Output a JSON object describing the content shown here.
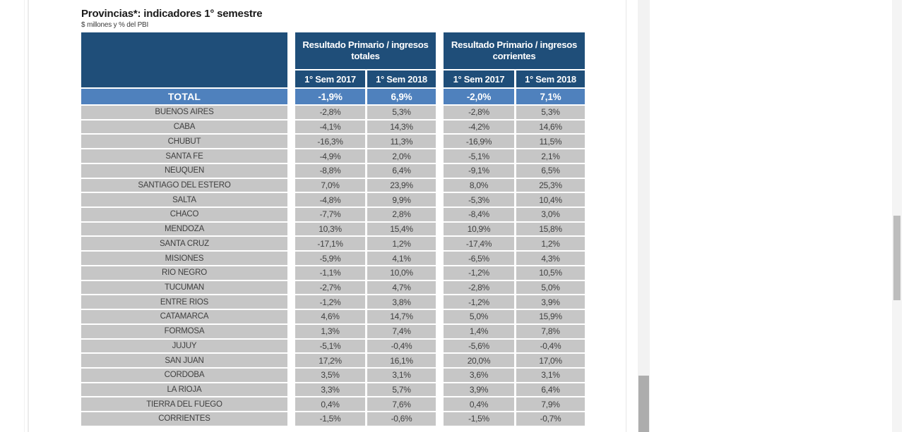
{
  "page": {
    "title": "Provincias*: indicadores 1° semestre",
    "subtitle": "$ millones y % del PBI"
  },
  "table": {
    "group_headers": [
      "Resultado Primario / ingresos totales",
      "Resultado Primario / ingresos corrientes"
    ],
    "sub_headers": [
      "1° Sem 2017",
      "1° Sem 2018",
      "1° Sem 2017",
      "1° Sem 2018"
    ],
    "total_row": {
      "label": "TOTAL",
      "values": [
        "-1,9%",
        "6,9%",
        "-2,0%",
        "7,1%"
      ]
    },
    "rows": [
      {
        "label": "BUENOS AIRES",
        "values": [
          "-2,8%",
          "5,3%",
          "-2,8%",
          "5,3%"
        ]
      },
      {
        "label": "CABA",
        "values": [
          "-4,1%",
          "14,3%",
          "-4,2%",
          "14,6%"
        ]
      },
      {
        "label": "CHUBUT",
        "values": [
          "-16,3%",
          "11,3%",
          "-16,9%",
          "11,5%"
        ]
      },
      {
        "label": "SANTA FE",
        "values": [
          "-4,9%",
          "2,0%",
          "-5,1%",
          "2,1%"
        ]
      },
      {
        "label": "NEUQUEN",
        "values": [
          "-8,8%",
          "6,4%",
          "-9,1%",
          "6,5%"
        ]
      },
      {
        "label": "SANTIAGO DEL ESTERO",
        "values": [
          "7,0%",
          "23,9%",
          "8,0%",
          "25,3%"
        ]
      },
      {
        "label": "SALTA",
        "values": [
          "-4,8%",
          "9,9%",
          "-5,3%",
          "10,4%"
        ]
      },
      {
        "label": "CHACO",
        "values": [
          "-7,7%",
          "2,8%",
          "-8,4%",
          "3,0%"
        ]
      },
      {
        "label": "MENDOZA",
        "values": [
          "10,3%",
          "15,4%",
          "10,9%",
          "15,8%"
        ]
      },
      {
        "label": "SANTA CRUZ",
        "values": [
          "-17,1%",
          "1,2%",
          "-17,4%",
          "1,2%"
        ]
      },
      {
        "label": "MISIONES",
        "values": [
          "-5,9%",
          "4,1%",
          "-6,5%",
          "4,3%"
        ]
      },
      {
        "label": "RIO NEGRO",
        "values": [
          "-1,1%",
          "10,0%",
          "-1,2%",
          "10,5%"
        ]
      },
      {
        "label": "TUCUMAN",
        "values": [
          "-2,7%",
          "4,7%",
          "-2,8%",
          "5,0%"
        ]
      },
      {
        "label": "ENTRE RIOS",
        "values": [
          "-1,2%",
          "3,8%",
          "-1,2%",
          "3,9%"
        ]
      },
      {
        "label": "CATAMARCA",
        "values": [
          "4,6%",
          "14,7%",
          "5,0%",
          "15,9%"
        ]
      },
      {
        "label": "FORMOSA",
        "values": [
          "1,3%",
          "7,4%",
          "1,4%",
          "7,8%"
        ]
      },
      {
        "label": "JUJUY",
        "values": [
          "-5,1%",
          "-0,4%",
          "-5,6%",
          "-0,4%"
        ]
      },
      {
        "label": "SAN JUAN",
        "values": [
          "17,2%",
          "16,1%",
          "20,0%",
          "17,0%"
        ]
      },
      {
        "label": "CORDOBA",
        "values": [
          "3,5%",
          "3,1%",
          "3,6%",
          "3,1%"
        ]
      },
      {
        "label": "LA RIOJA",
        "values": [
          "3,3%",
          "5,7%",
          "3,9%",
          "6,4%"
        ]
      },
      {
        "label": "TIERRA DEL FUEGO",
        "values": [
          "0,4%",
          "7,6%",
          "0,4%",
          "7,9%"
        ]
      },
      {
        "label": "CORRIENTES",
        "values": [
          "-1,5%",
          "-0,6%",
          "-1,5%",
          "-0,7%"
        ]
      }
    ]
  },
  "colors": {
    "header_navy": "#1F4E79",
    "total_blue": "#4F81BD",
    "row_gray": "#C6C6C6",
    "cell_text": "#3F3F3F",
    "scrollbar_thumb_inner": "#ADADAD",
    "scrollbar_thumb_outer": "#BDBDBD"
  }
}
